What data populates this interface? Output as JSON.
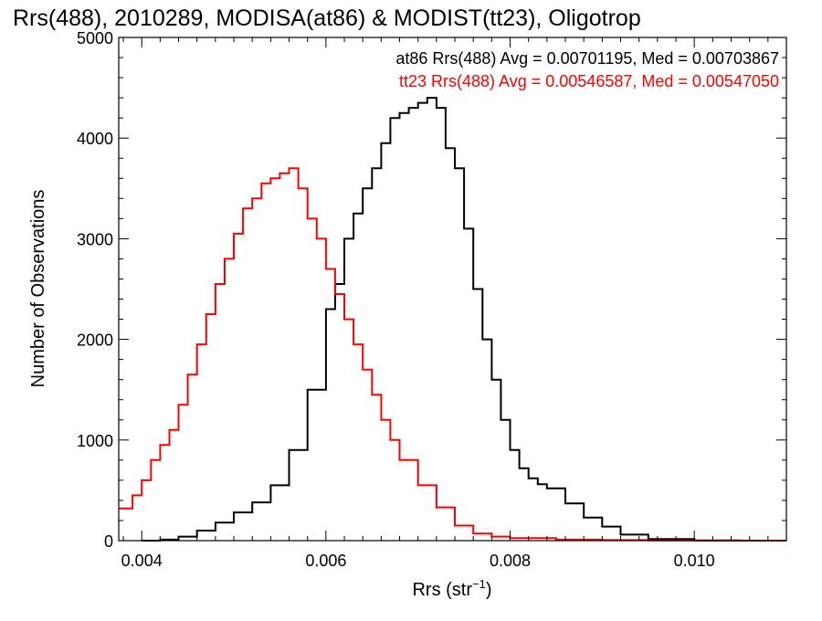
{
  "title": "Rrs(488), 2010289, MODISA(at86) & MODIST(tt23), Oligotrop",
  "chart_data": {
    "type": "line",
    "title": "Rrs(488), 2010289, MODISA(at86) & MODIST(tt23), Oligotrop",
    "xlabel": "Rrs (str",
    "xlabel_sup": "−1",
    "xlabel_close": ")",
    "ylabel": "Number of Observations",
    "xlim": [
      0.00375,
      0.011
    ],
    "ylim": [
      0,
      5000
    ],
    "x_ticks": [
      {
        "value": 0.004,
        "label": "0.004"
      },
      {
        "value": 0.006,
        "label": "0.006"
      },
      {
        "value": 0.008,
        "label": "0.008"
      },
      {
        "value": 0.01,
        "label": "0.010"
      }
    ],
    "y_ticks": [
      {
        "value": 0,
        "label": "0"
      },
      {
        "value": 1000,
        "label": "1000"
      },
      {
        "value": 2000,
        "label": "2000"
      },
      {
        "value": 3000,
        "label": "3000"
      },
      {
        "value": 4000,
        "label": "4000"
      },
      {
        "value": 5000,
        "label": "5000"
      }
    ],
    "legend_placement": "top-right",
    "series": [
      {
        "name": "at86 Rrs(488) Avg = 0.00701195, Med = 0.00703867",
        "color": "#000000",
        "x": [
          0.004,
          0.0042,
          0.0044,
          0.0046,
          0.0048,
          0.005,
          0.0052,
          0.0054,
          0.0056,
          0.0058,
          0.006,
          0.0061,
          0.0062,
          0.0063,
          0.0064,
          0.0065,
          0.0066,
          0.0067,
          0.0068,
          0.0069,
          0.007,
          0.0071,
          0.0072,
          0.0073,
          0.0074,
          0.0075,
          0.0076,
          0.0077,
          0.0078,
          0.0079,
          0.008,
          0.0081,
          0.0082,
          0.0083,
          0.0084,
          0.0086,
          0.0088,
          0.009,
          0.0092,
          0.0095,
          0.01,
          0.0105,
          0.011
        ],
        "y": [
          0,
          10,
          40,
          100,
          180,
          280,
          380,
          550,
          900,
          1500,
          2300,
          2550,
          3000,
          3250,
          3500,
          3700,
          3950,
          4200,
          4250,
          4300,
          4350,
          4400,
          4300,
          3900,
          3700,
          3100,
          2500,
          2000,
          1600,
          1200,
          900,
          720,
          620,
          560,
          520,
          370,
          230,
          140,
          60,
          15,
          3,
          0,
          0
        ]
      },
      {
        "name": "tt23 Rrs(488) Avg = 0.00546587, Med = 0.00547050",
        "color": "#ff0000",
        "x": [
          0.00375,
          0.0039,
          0.004,
          0.0041,
          0.0042,
          0.0043,
          0.0044,
          0.0045,
          0.0046,
          0.0047,
          0.0048,
          0.0049,
          0.005,
          0.0051,
          0.0052,
          0.0053,
          0.0054,
          0.0055,
          0.0056,
          0.0057,
          0.0058,
          0.0059,
          0.006,
          0.0061,
          0.0062,
          0.0063,
          0.0064,
          0.0065,
          0.0066,
          0.0067,
          0.0068,
          0.007,
          0.0072,
          0.0074,
          0.0076,
          0.0078,
          0.008,
          0.0085,
          0.009,
          0.0095,
          0.01,
          0.011
        ],
        "y": [
          320,
          450,
          600,
          800,
          950,
          1100,
          1350,
          1650,
          1950,
          2250,
          2550,
          2800,
          3050,
          3300,
          3400,
          3550,
          3600,
          3650,
          3700,
          3500,
          3200,
          3000,
          2700,
          2450,
          2200,
          1950,
          1700,
          1450,
          1200,
          1000,
          800,
          550,
          330,
          150,
          70,
          40,
          25,
          10,
          5,
          2,
          0,
          0
        ]
      }
    ]
  }
}
